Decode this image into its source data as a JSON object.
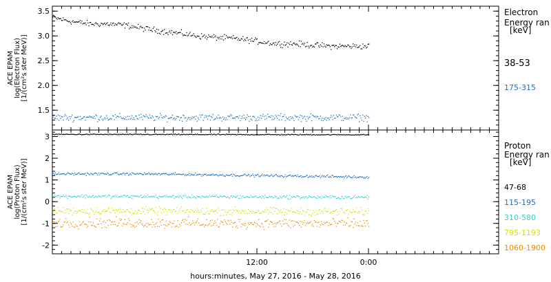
{
  "x_title": "hours:minutes, May 27, 2016 - May 28, 2016",
  "chart_data": [
    {
      "type": "scatter",
      "panel": "electron",
      "ylabel_lines": [
        "ACE EPAM",
        "log(Electron Flux)",
        "[1/(cm²s ster MeV)]"
      ],
      "ylim": [
        1.1,
        3.6
      ],
      "yticks": [
        1.5,
        2.0,
        2.5,
        3.0,
        3.5
      ],
      "ytick_labels": [
        "1.5",
        "2.0",
        "2.5",
        "3.0",
        "3.5"
      ],
      "xlim_hours": [
        -10,
        38
      ],
      "xticks_hours": [
        12,
        24
      ],
      "xtick_labels": [
        "12:00",
        "0:00"
      ],
      "data_x_range_hours": [
        -10,
        24
      ],
      "legend_title": [
        "Electron",
        "Energy ran",
        "[keV]"
      ],
      "series": [
        {
          "name": "38-53",
          "color": "#000000",
          "x_hours": [
            -10,
            -8,
            -6,
            -4,
            -2,
            0,
            2,
            4,
            6,
            8,
            10,
            12,
            14,
            16,
            18,
            20,
            22,
            24
          ],
          "values": [
            3.38,
            3.3,
            3.25,
            3.25,
            3.22,
            3.15,
            3.1,
            3.05,
            3.0,
            2.97,
            2.95,
            2.9,
            2.85,
            2.85,
            2.82,
            2.8,
            2.8,
            2.8
          ],
          "scatter": 0.05
        },
        {
          "name": "175-315",
          "color": "#1a6fc9",
          "x_hours": [
            -10,
            24
          ],
          "values": [
            1.36,
            1.36
          ],
          "scatter": 0.06
        }
      ]
    },
    {
      "type": "scatter",
      "panel": "proton",
      "ylabel_lines": [
        "ACE EPAM",
        "log(Proton Flux)",
        "[1/(cm²s ster MeV)]"
      ],
      "ylim": [
        -2.4,
        3.3
      ],
      "yticks": [
        -2,
        -1,
        0,
        1,
        2,
        3
      ],
      "ytick_labels": [
        "-2",
        "-1",
        "0",
        "1",
        "2",
        "3"
      ],
      "xlim_hours": [
        -10,
        38
      ],
      "xticks_hours": [
        12,
        24
      ],
      "xtick_labels": [
        "12:00",
        "0:00"
      ],
      "data_x_range_hours": [
        -10,
        24
      ],
      "legend_title": [
        "Proton",
        "Energy ran",
        "[keV]"
      ],
      "series": [
        {
          "name": "47-68",
          "color": "#000000",
          "x_hours": [
            -10,
            24
          ],
          "values": [
            3.12,
            3.1
          ],
          "scatter": 0.02
        },
        {
          "name": "115-195",
          "color": "#1a6fc9",
          "x_hours": [
            -10,
            0,
            24
          ],
          "values": [
            1.3,
            1.3,
            1.15
          ],
          "scatter": 0.05
        },
        {
          "name": "310-580",
          "color": "#2fd3d3",
          "x_hours": [
            -10,
            24
          ],
          "values": [
            0.27,
            0.22
          ],
          "scatter": 0.07
        },
        {
          "name": "795-1193",
          "color": "#d4e000",
          "x_hours": [
            -10,
            24
          ],
          "values": [
            -0.4,
            -0.45
          ],
          "scatter": 0.15
        },
        {
          "name": "1060-1900",
          "color": "#f28a00",
          "x_hours": [
            -10,
            24
          ],
          "values": [
            -0.95,
            -1.0
          ],
          "scatter": 0.2
        }
      ]
    }
  ]
}
